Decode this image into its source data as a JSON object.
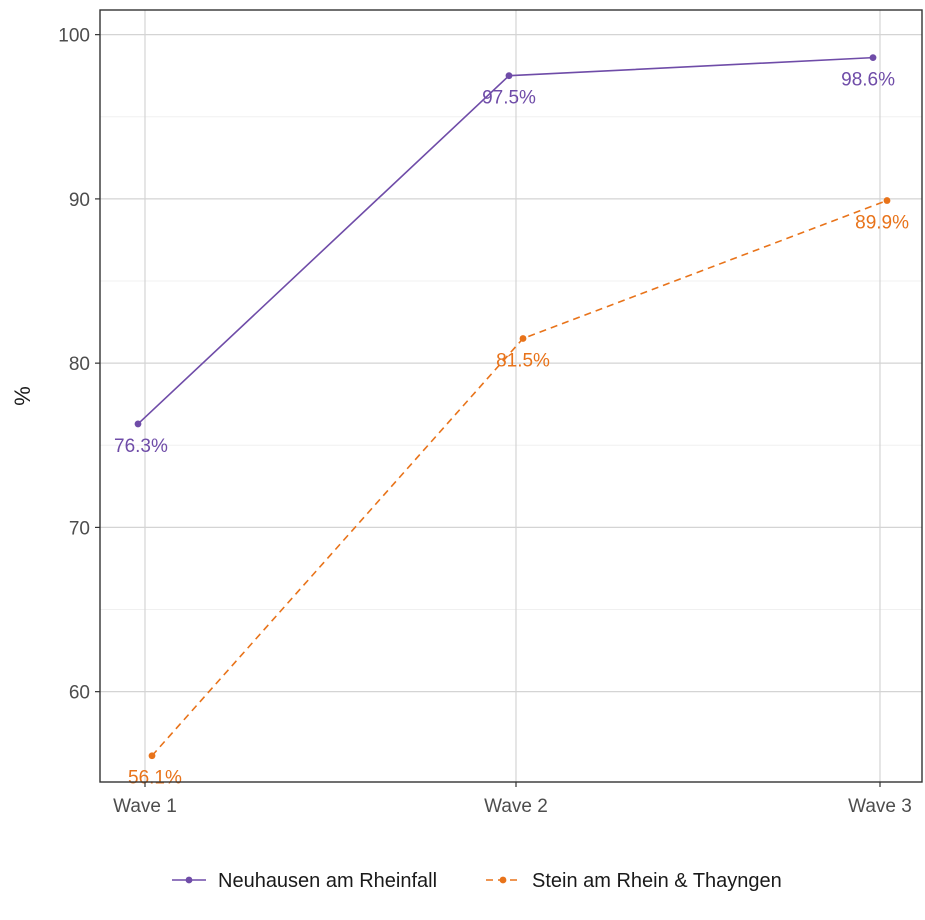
{
  "chart_data": {
    "type": "line",
    "title": "",
    "xlabel": "",
    "ylabel": "%",
    "categories": [
      "Wave 1",
      "Wave 2",
      "Wave 3"
    ],
    "ylim": [
      54.5,
      101.5
    ],
    "yticks": [
      60,
      70,
      80,
      90,
      100
    ],
    "grid": true,
    "legend": "bottom",
    "series": [
      {
        "name": "Neuhausen am Rheinfall",
        "values": [
          76.3,
          97.5,
          98.6
        ],
        "labels": [
          "76.3%",
          "97.5%",
          "98.6%"
        ],
        "color": "#6f4ca8",
        "dash": "solid"
      },
      {
        "name": "Stein am Rhein & Thayngen",
        "values": [
          56.1,
          81.5,
          89.9
        ],
        "labels": [
          "56.1%",
          "81.5%",
          "89.9%"
        ],
        "color": "#e8731a",
        "dash": "dashed"
      }
    ]
  }
}
